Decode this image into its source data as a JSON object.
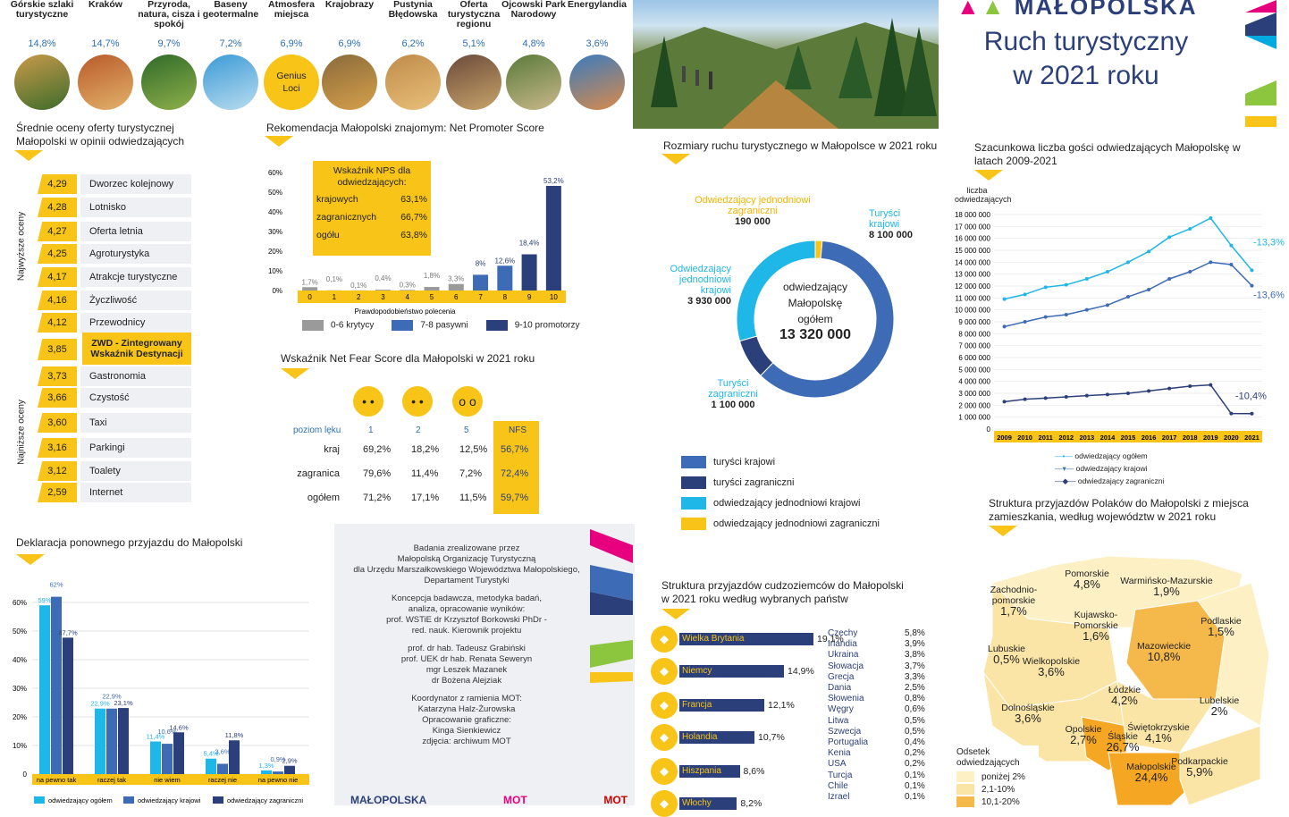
{
  "header": {
    "title_line1": "Ruch turystyczny",
    "title_line2": "w 2021 roku",
    "logo_text": "MAŁOPOLSKA"
  },
  "attractions": [
    {
      "label": "Górskie szlaki turystyczne",
      "pct": "14,8%"
    },
    {
      "label": "Kraków",
      "pct": "14,7%"
    },
    {
      "label": "Przyroda, natura, cisza i spokój",
      "pct": "9,7%"
    },
    {
      "label": "Baseny geotermalne",
      "pct": "7,2%"
    },
    {
      "label": "Atmosfera miejsca",
      "pct": "6,9%",
      "circle_text": "Genius Loci"
    },
    {
      "label": "Krajobrazy",
      "pct": "6,9%"
    },
    {
      "label": "Pustynia Błędowska",
      "pct": "6,2%"
    },
    {
      "label": "Oferta turystyczna regionu",
      "pct": "5,1%"
    },
    {
      "label": "Ojcowski Park Narodowy",
      "pct": "4,8%"
    },
    {
      "label": "Energylandia",
      "pct": "3,6%"
    }
  ],
  "ratings": {
    "title": "Średnie oceny oferty turystycznej Małopolski w opinii odwiedzających",
    "side_top": "Najwyższe oceny",
    "side_bottom": "Najniższe oceny",
    "items": [
      {
        "value": "4,29",
        "label": "Dworzec kolejnowy"
      },
      {
        "value": "4,28",
        "label": "Lotnisko"
      },
      {
        "value": "4,27",
        "label": "Oferta letnia"
      },
      {
        "value": "4,25",
        "label": "Agroturystyka"
      },
      {
        "value": "4,17",
        "label": "Atrakcje turystyczne"
      },
      {
        "value": "4,16",
        "label": "Życzliwość"
      },
      {
        "value": "4,12",
        "label": "Przewodnicy"
      },
      {
        "value": "3,85",
        "label": "ZWD - Zintegrowany Wskaźnik Destynacji"
      },
      {
        "value": "3,73",
        "label": "Gastronomia"
      },
      {
        "value": "3,66",
        "label": "Czystość"
      },
      {
        "value": "3,60",
        "label": "Taxi"
      },
      {
        "value": "3,16",
        "label": "Parkingi"
      },
      {
        "value": "3,12",
        "label": "Toalety"
      },
      {
        "value": "2,59",
        "label": "Internet"
      }
    ]
  },
  "nps": {
    "title": "Rekomendacja Małopolski znajomym: Net Promoter Score",
    "box_title": "Wskaźnik NPS dla odwiedzających:",
    "box_rows": [
      {
        "label": "krajowych",
        "value": "63,1%"
      },
      {
        "label": "zagranicznych",
        "value": "66,7%"
      },
      {
        "label": "ogółu",
        "value": "63,8%"
      }
    ],
    "xlabel": "Prawdopodobieństwo polecenia",
    "legend": [
      "0-6 krytycy",
      "7-8 pasywni",
      "9-10 promotorzy"
    ],
    "colors": [
      "#9a9a9a",
      "#3d6bb5",
      "#2b3f7a"
    ]
  },
  "nfs": {
    "title": "Wskaźnik Net Fear Score dla Małopolski w 2021 roku",
    "header": [
      "poziom lęku",
      "1",
      "2",
      "5",
      "NFS"
    ],
    "rows": [
      {
        "label": "kraj",
        "v1": "69,2%",
        "v2": "18,2%",
        "v5": "12,5%",
        "nfs": "56,7%"
      },
      {
        "label": "zagranica",
        "v1": "79,6%",
        "v2": "11,4%",
        "v5": "7,2%",
        "nfs": "72,4%"
      },
      {
        "label": "ogółem",
        "v1": "71,2%",
        "v2": "17,1%",
        "v5": "11,5%",
        "nfs": "59,7%"
      }
    ]
  },
  "donut": {
    "title": "Rozmiary ruchu turystycznego w Małopolsce w 2021 roku",
    "center_line1": "odwiedzający",
    "center_line2": "Małopolskę",
    "center_line3": "ogółem",
    "center_total": "13 320 000",
    "labels": [
      {
        "name": "Turyści krajowi",
        "value": "8 100 000"
      },
      {
        "name": "Turyści zagraniczni",
        "value": "1 100 000"
      },
      {
        "name": "Odwiedzający jednodniowi krajowi",
        "value": "3 930 000"
      },
      {
        "name": "Odwiedzający jednodniowi zagraniczni",
        "value": "190 000"
      }
    ],
    "legend": [
      "turyści krajowi",
      "turyści zagraniczni",
      "odwiedzający jednodniowi krajowi",
      "odwiedzający jednodniowi zagraniczni"
    ],
    "colors": [
      "#3d6bb5",
      "#2b3f7a",
      "#1fb6e8",
      "#f7c417"
    ]
  },
  "line": {
    "title": "Szacunkowa liczba gości odwiedzających  Małopolskę w latach 2009-2021",
    "ylabel": "liczba odwiedzających",
    "legend": [
      "odwiedzający ogółem",
      "odwiedzający krajowi",
      "odwiedzający zagraniczni"
    ],
    "annotations": [
      "-13,3%",
      "-13,6%",
      "-10,4%"
    ]
  },
  "revisit": {
    "title": "Deklaracja ponownego przyjazdu do Małopolski",
    "legend": [
      "odwiedzający ogółem",
      "odwiedzający krajowi",
      "odwiedzający zagraniczni"
    ]
  },
  "credits": {
    "lines": [
      "Badania zrealizowane przez",
      "Małopolską Organizację Turystyczną",
      "dla Urzędu Marszałkowskiego Województwa Małopolskiego,",
      "Departament Turystyki",
      "",
      "Koncepcja badawcza, metodyka badań,",
      "analiza, opracowanie wyników:",
      "prof. WSTiE dr Krzysztof Borkowski PhDr -",
      "red. nauk. Kierownik projektu",
      "",
      "prof. dr hab. Tadeusz Grabiński",
      "prof. UEK dr hab. Renata Seweryn",
      "mgr Leszek Mazanek",
      "dr Bożena Alejziak",
      "",
      "Koordynator z ramienia MOT:",
      "Katarzyna Halz-Żurowska",
      "Opracowanie graficzne:",
      "Kinga Sienkiewicz",
      "zdjęcia: archiwum MOT"
    ],
    "footer_logos": [
      "MAŁOPOLSKA",
      "MOT",
      "MOT"
    ]
  },
  "foreign": {
    "title": "Struktura przyjazdów cudzoziemców do Małopolski w 2021 roku według wybranych państw",
    "bars": [
      {
        "name": "Wielka Brytania",
        "value": "19,1%"
      },
      {
        "name": "Niemcy",
        "value": "14,9%"
      },
      {
        "name": "Francja",
        "value": "12,1%"
      },
      {
        "name": "Holandia",
        "value": "10,7%"
      },
      {
        "name": "Hiszpania",
        "value": "8,6%"
      },
      {
        "name": "Włochy",
        "value": "8,2%"
      }
    ],
    "list": [
      {
        "name": "Czechy",
        "value": "5,8%"
      },
      {
        "name": "Irlandia",
        "value": "3,9%"
      },
      {
        "name": "Ukraina",
        "value": "3,8%"
      },
      {
        "name": "Słowacja",
        "value": "3,7%"
      },
      {
        "name": "Grecja",
        "value": "3,3%"
      },
      {
        "name": "Dania",
        "value": "2,5%"
      },
      {
        "name": "Słowenia",
        "value": "0,8%"
      },
      {
        "name": "Węgry",
        "value": "0,6%"
      },
      {
        "name": "Litwa",
        "value": "0,5%"
      },
      {
        "name": "Szwecja",
        "value": "0,5%"
      },
      {
        "name": "Portugalia",
        "value": "0,4%"
      },
      {
        "name": "Kenia",
        "value": "0,2%"
      },
      {
        "name": "USA",
        "value": "0,2%"
      },
      {
        "name": "Turcja",
        "value": "0,1%"
      },
      {
        "name": "Chile",
        "value": "0,1%"
      },
      {
        "name": "Izrael",
        "value": "0,1%"
      }
    ]
  },
  "poland": {
    "title": "Struktura przyjazdów Polaków do Małopolski z miejsca zamieszkania, według województw w 2021 roku",
    "legend_title": "Odsetek odwiedzających",
    "legend": [
      "poniżej 2%",
      "2,1-10%",
      "10,1-20%"
    ],
    "regions": [
      {
        "name": "Pomorskie",
        "value": "4,8%"
      },
      {
        "name": "Warmińsko-Mazurskie",
        "value": "1,9%"
      },
      {
        "name": "Zachodnio-pomorskie",
        "value": "1,7%"
      },
      {
        "name": "Kujawsko-Pomorskie",
        "value": "1,6%"
      },
      {
        "name": "Podlaskie",
        "value": "1,5%"
      },
      {
        "name": "Lubuskie",
        "value": "0,5%"
      },
      {
        "name": "Wielkopolskie",
        "value": "3,6%"
      },
      {
        "name": "Mazowieckie",
        "value": "10,8%"
      },
      {
        "name": "Łódzkie",
        "value": "4,2%"
      },
      {
        "name": "Lubelskie",
        "value": "2%"
      },
      {
        "name": "Dolnośląskie",
        "value": "3,6%"
      },
      {
        "name": "Opolskie",
        "value": "2,7%"
      },
      {
        "name": "Śląskie",
        "value": "26,7%"
      },
      {
        "name": "Świętokrzyskie",
        "value": "4,1%"
      },
      {
        "name": "Małopolskie",
        "value": "24,4%"
      },
      {
        "name": "Podkarpackie",
        "value": "5,9%"
      }
    ]
  },
  "chart_data": [
    {
      "type": "bar",
      "title": "Rekomendacja Małopolski znajomym: Net Promoter Score",
      "xlabel": "Prawdopodobieństwo polecenia",
      "categories": [
        "0",
        "1",
        "2",
        "3",
        "4",
        "5",
        "6",
        "7",
        "8",
        "9",
        "10"
      ],
      "values": [
        1.7,
        0.1,
        0.1,
        0.4,
        0.3,
        1.8,
        3.3,
        8,
        12.6,
        18.4,
        53.2
      ],
      "labels": [
        "1,7%",
        "0,1%",
        "0,1%",
        "0,4%",
        "0,3%",
        "1,8%",
        "3,3%",
        "8%",
        "12,6%",
        "18,4%",
        "53,2%"
      ],
      "groups": [
        "0-6 krytycy",
        "0-6 krytycy",
        "0-6 krytycy",
        "0-6 krytycy",
        "0-6 krytycy",
        "0-6 krytycy",
        "0-6 krytycy",
        "7-8 pasywni",
        "7-8 pasywni",
        "9-10 promotorzy",
        "9-10 promotorzy"
      ],
      "yticks": [
        "0%",
        "10%",
        "20%",
        "30%",
        "40%",
        "50%",
        "60%"
      ],
      "ylim": [
        0,
        60
      ]
    },
    {
      "type": "pie",
      "title": "Rozmiary ruchu turystycznego w Małopolsce w 2021 roku",
      "categories": [
        "turyści krajowi",
        "turyści zagraniczni",
        "odwiedzający jednodniowi krajowi",
        "odwiedzający jednodniowi zagraniczni"
      ],
      "values": [
        8100000,
        1100000,
        3930000,
        190000
      ]
    },
    {
      "type": "line",
      "title": "Szacunkowa liczba gości odwiedzających  Małopolskę w latach 2009-2021",
      "ylabel": "liczba odwiedzających",
      "x": [
        "2009",
        "2010",
        "2011",
        "2012",
        "2013",
        "2014",
        "2015",
        "2016",
        "2017",
        "2018",
        "2019",
        "2020",
        "2021"
      ],
      "yticks": [
        "0",
        "1 000 000",
        "2 000 000",
        "3 000 000",
        "4 000 000",
        "5 000 000",
        "6 000 000",
        "7 000 000",
        "8 000 000",
        "9 000 000",
        "10 000 000",
        "11 000 000",
        "12 000 000",
        "13 000 000",
        "14 000 000",
        "15 000 000",
        "16 000 000",
        "17 000 000",
        "18 000 000"
      ],
      "ylim": [
        0,
        18000000
      ],
      "series": [
        {
          "name": "odwiedzający ogółem",
          "values": [
            10900000,
            11300000,
            11900000,
            12100000,
            12600000,
            13200000,
            14000000,
            14900000,
            16100000,
            16800000,
            17700000,
            15400000,
            13320000
          ]
        },
        {
          "name": "odwiedzający krajowi",
          "values": [
            8600000,
            9000000,
            9400000,
            9600000,
            10000000,
            10400000,
            11100000,
            11700000,
            12600000,
            13200000,
            14000000,
            13800000,
            12030000
          ]
        },
        {
          "name": "odwiedzający zagraniczni",
          "values": [
            2300000,
            2500000,
            2600000,
            2700000,
            2800000,
            2900000,
            3000000,
            3200000,
            3400000,
            3600000,
            3700000,
            1300000,
            1290000
          ]
        }
      ]
    },
    {
      "type": "bar",
      "title": "Deklaracja ponownego przyjazdu do Małopolski",
      "categories": [
        "na pewno tak",
        "raczej tak",
        "nie wiem",
        "raczej nie",
        "na pewno nie"
      ],
      "yticks": [
        "0",
        "10%",
        "20%",
        "30%",
        "40%",
        "50%",
        "60%"
      ],
      "ylim": [
        0,
        60
      ],
      "series": [
        {
          "name": "odwiedzający ogółem",
          "values": [
            59,
            22.9,
            11.4,
            5.4,
            1.3
          ],
          "labels": [
            "59%",
            "22,9%",
            "11,4%",
            "5,4%",
            "1,3%"
          ]
        },
        {
          "name": "odwiedzający krajowi",
          "values": [
            62,
            22.9,
            10.6,
            3.6,
            0.9
          ],
          "labels": [
            "62%",
            "22,9%",
            "10,6%",
            "3,6%",
            "0,9%"
          ]
        },
        {
          "name": "odwiedzający zagraniczni",
          "values": [
            47.7,
            23.1,
            14.6,
            11.8,
            2.9
          ],
          "labels": [
            "47,7%",
            "23,1%",
            "14,6%",
            "11,8%",
            "2,9%"
          ]
        }
      ]
    },
    {
      "type": "bar",
      "title": "Struktura przyjazdów cudzoziemców do Małopolski w 2021 roku według wybranych państw",
      "categories": [
        "Wielka Brytania",
        "Niemcy",
        "Francja",
        "Holandia",
        "Hiszpania",
        "Włochy"
      ],
      "values": [
        19.1,
        14.9,
        12.1,
        10.7,
        8.6,
        8.2
      ]
    }
  ]
}
